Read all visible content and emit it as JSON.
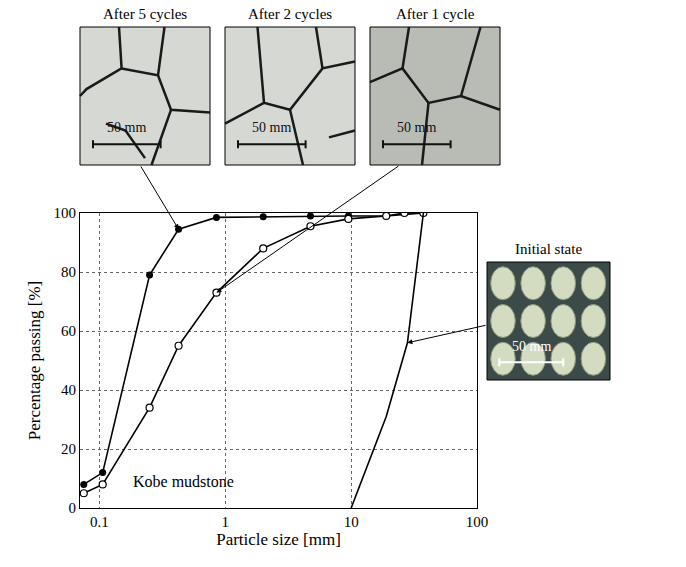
{
  "chart_data": {
    "type": "line",
    "x_label": "Particle size [mm]",
    "y_label": "Percentage passing [%]",
    "annotation": "Kobe mudstone",
    "log": "x",
    "grid": true,
    "xlim": [
      0.07,
      100
    ],
    "xticks": [
      0.1,
      1,
      10,
      100
    ],
    "ylim": [
      0,
      100
    ],
    "yticks": [
      0,
      20,
      40,
      60,
      80,
      100
    ],
    "series": [
      {
        "name": "After 5 cycles",
        "color": "#000000",
        "marker": "filled",
        "x": [
          0.075,
          0.106,
          0.25,
          0.425,
          0.85,
          2,
          4.75,
          9.5,
          19,
          37.5
        ],
        "values": [
          8,
          12,
          79,
          94.5,
          98.5,
          98.7,
          99,
          99,
          99,
          100
        ]
      },
      {
        "name": "After 1 cycle",
        "color": "#000000",
        "marker": "open",
        "x": [
          0.075,
          0.106,
          0.25,
          0.425,
          0.85,
          2,
          4.75,
          9.5,
          19,
          26.5,
          37.5
        ],
        "values": [
          5,
          8,
          34,
          55,
          73,
          88,
          95.5,
          98,
          99,
          100,
          100
        ]
      },
      {
        "name": "Initial state",
        "color": "#000000",
        "marker": "none",
        "x": [
          10,
          19,
          28,
          37.5
        ],
        "values": [
          0,
          31,
          56,
          100
        ]
      }
    ],
    "insets": [
      {
        "title": "After 5 cycles",
        "scale_label": "50 mm"
      },
      {
        "title": "After 2 cycles",
        "scale_label": "50 mm"
      },
      {
        "title": "After 1 cycle",
        "scale_label": "50 mm"
      },
      {
        "title": "Initial state",
        "scale_label": "50 mm"
      }
    ]
  }
}
